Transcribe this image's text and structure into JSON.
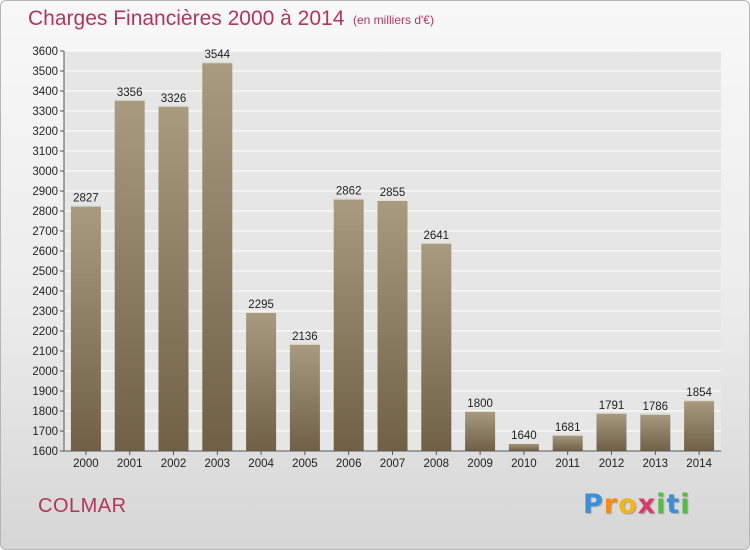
{
  "header": {
    "title": "Charges Financières 2000 à 2014",
    "unit": "(en milliers d'€)"
  },
  "footer": {
    "city": "COLMAR",
    "logo_letters": [
      "P",
      "r",
      "o",
      "x",
      "i",
      "t",
      "i"
    ],
    "logo_colors": [
      "#3a8fd8",
      "#f28c1a",
      "#f2b51a",
      "#d93a6a",
      "#57b947",
      "#3a8fd8",
      "#57b947"
    ]
  },
  "colors": {
    "accent": "#b3365a",
    "bar_top": "#a89b80",
    "bar_bottom": "#6f6046"
  },
  "chart_data": {
    "type": "bar",
    "title": "Charges Financières 2000 à 2014",
    "subtitle": "(en milliers d'€)",
    "categories": [
      "2000",
      "2001",
      "2002",
      "2003",
      "2004",
      "2005",
      "2006",
      "2007",
      "2008",
      "2009",
      "2010",
      "2011",
      "2012",
      "2013",
      "2014"
    ],
    "values": [
      2827,
      3356,
      3326,
      3544,
      2295,
      2136,
      2862,
      2855,
      2641,
      1800,
      1640,
      1681,
      1791,
      1786,
      1854
    ],
    "data_labels": [
      "2827",
      "3356",
      "3326",
      "3544",
      "2295",
      "2136",
      "2862",
      "2855",
      "2641",
      "1800",
      "1640",
      "1681",
      "1791",
      "1786",
      "1854"
    ],
    "ylim": [
      1600,
      3600
    ],
    "yticks": [
      "1600",
      "1700",
      "1800",
      "1900",
      "2000",
      "2100",
      "2200",
      "2300",
      "2400",
      "2500",
      "2600",
      "2700",
      "2800",
      "2900",
      "3000",
      "3100",
      "3200",
      "3300",
      "3400",
      "3500",
      "3600"
    ],
    "grid": true
  }
}
